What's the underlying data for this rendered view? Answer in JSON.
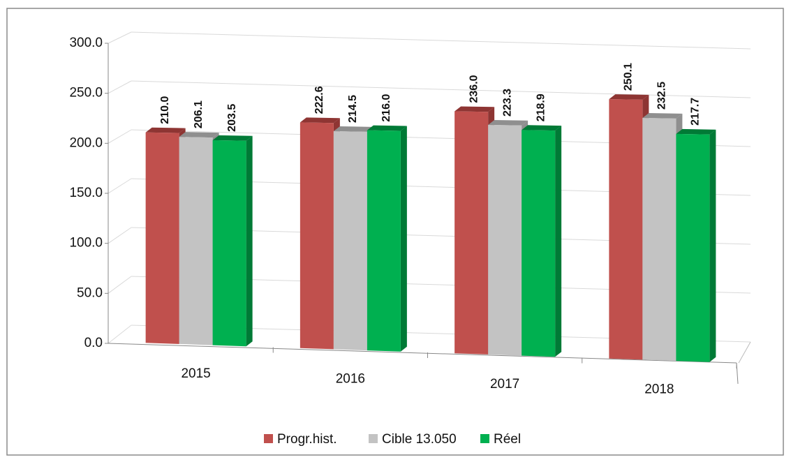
{
  "chart_data": {
    "type": "bar3d",
    "categories": [
      "2015",
      "2016",
      "2017",
      "2018"
    ],
    "series": [
      {
        "name": "Progr.hist.",
        "color": "#c0504d",
        "side": "#8e3533",
        "values": [
          210.0,
          222.6,
          236.0,
          250.1
        ],
        "value_labels": [
          "210.0",
          "222.6",
          "236.0",
          "250.1"
        ]
      },
      {
        "name": "Cible 13.050",
        "color": "#c3c3c3",
        "side": "#8f8f8f",
        "values": [
          206.1,
          214.5,
          223.3,
          232.5
        ],
        "value_labels": [
          "206.1",
          "214.5",
          "223.3",
          "232.5"
        ]
      },
      {
        "name": "Réel",
        "color": "#00b050",
        "side": "#007a36",
        "values": [
          203.5,
          216.0,
          218.9,
          217.7
        ],
        "value_labels": [
          "203.5",
          "216.0",
          "218.9",
          "217.7"
        ]
      }
    ],
    "ylim": [
      0,
      300
    ],
    "yticks": [
      {
        "value": 0,
        "label": "0.0"
      },
      {
        "value": 50,
        "label": "50.0"
      },
      {
        "value": 100,
        "label": "100.0"
      },
      {
        "value": 150,
        "label": "150.0"
      },
      {
        "value": 200,
        "label": "200.0"
      },
      {
        "value": 250,
        "label": "250.0"
      },
      {
        "value": 300,
        "label": "300.0"
      }
    ],
    "grid": true,
    "legend": "bottom"
  }
}
